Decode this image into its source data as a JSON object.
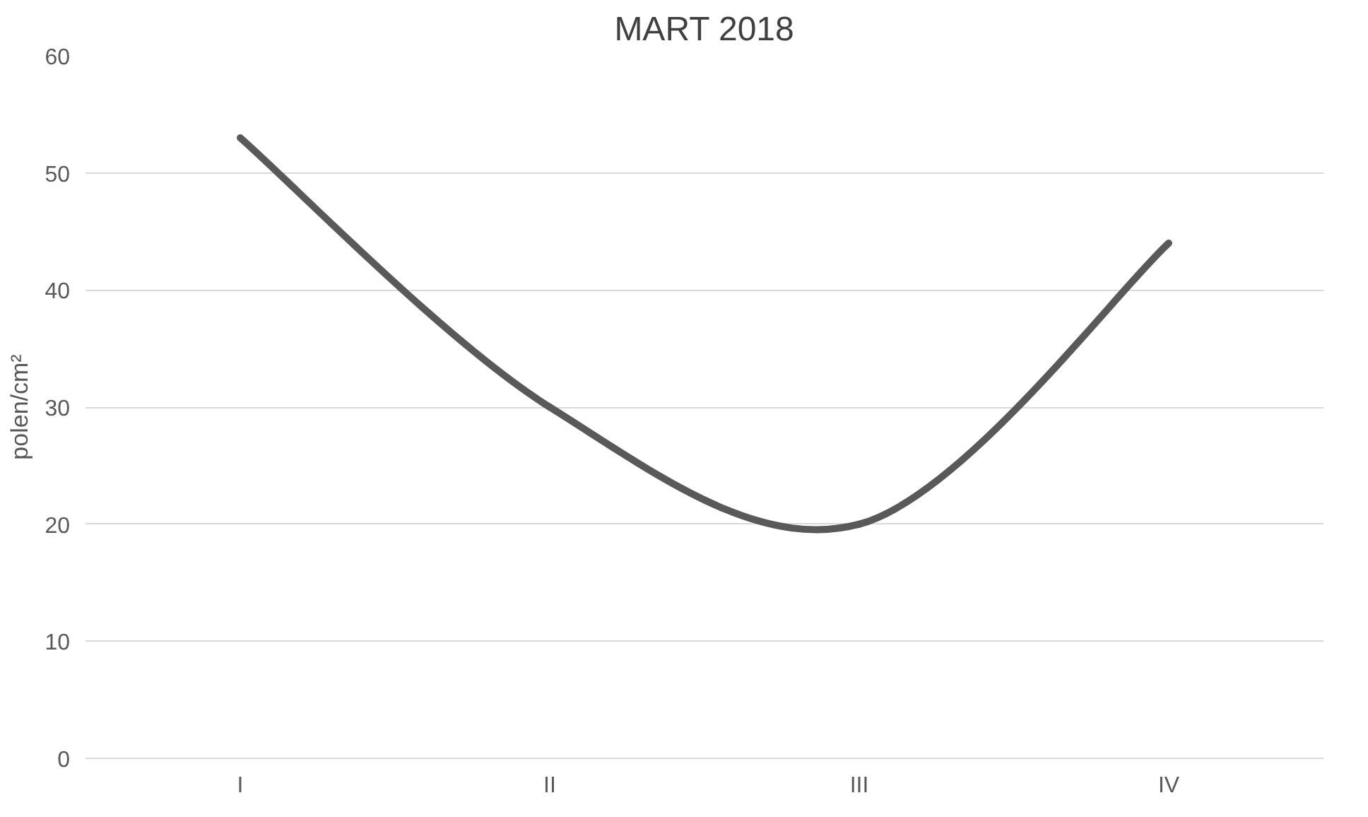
{
  "chart_data": {
    "type": "line",
    "title": "MART 2018",
    "ylabel": "polen/cm²",
    "categories": [
      "I",
      "II",
      "III",
      "IV"
    ],
    "series": [
      {
        "color": "#595959",
        "values": [
          53,
          30,
          20,
          44
        ]
      }
    ],
    "ylim": [
      0,
      60
    ],
    "yticks": [
      0,
      10,
      20,
      30,
      40,
      50,
      60
    ],
    "grid": "y",
    "marker": "none",
    "line_style": "solid"
  }
}
